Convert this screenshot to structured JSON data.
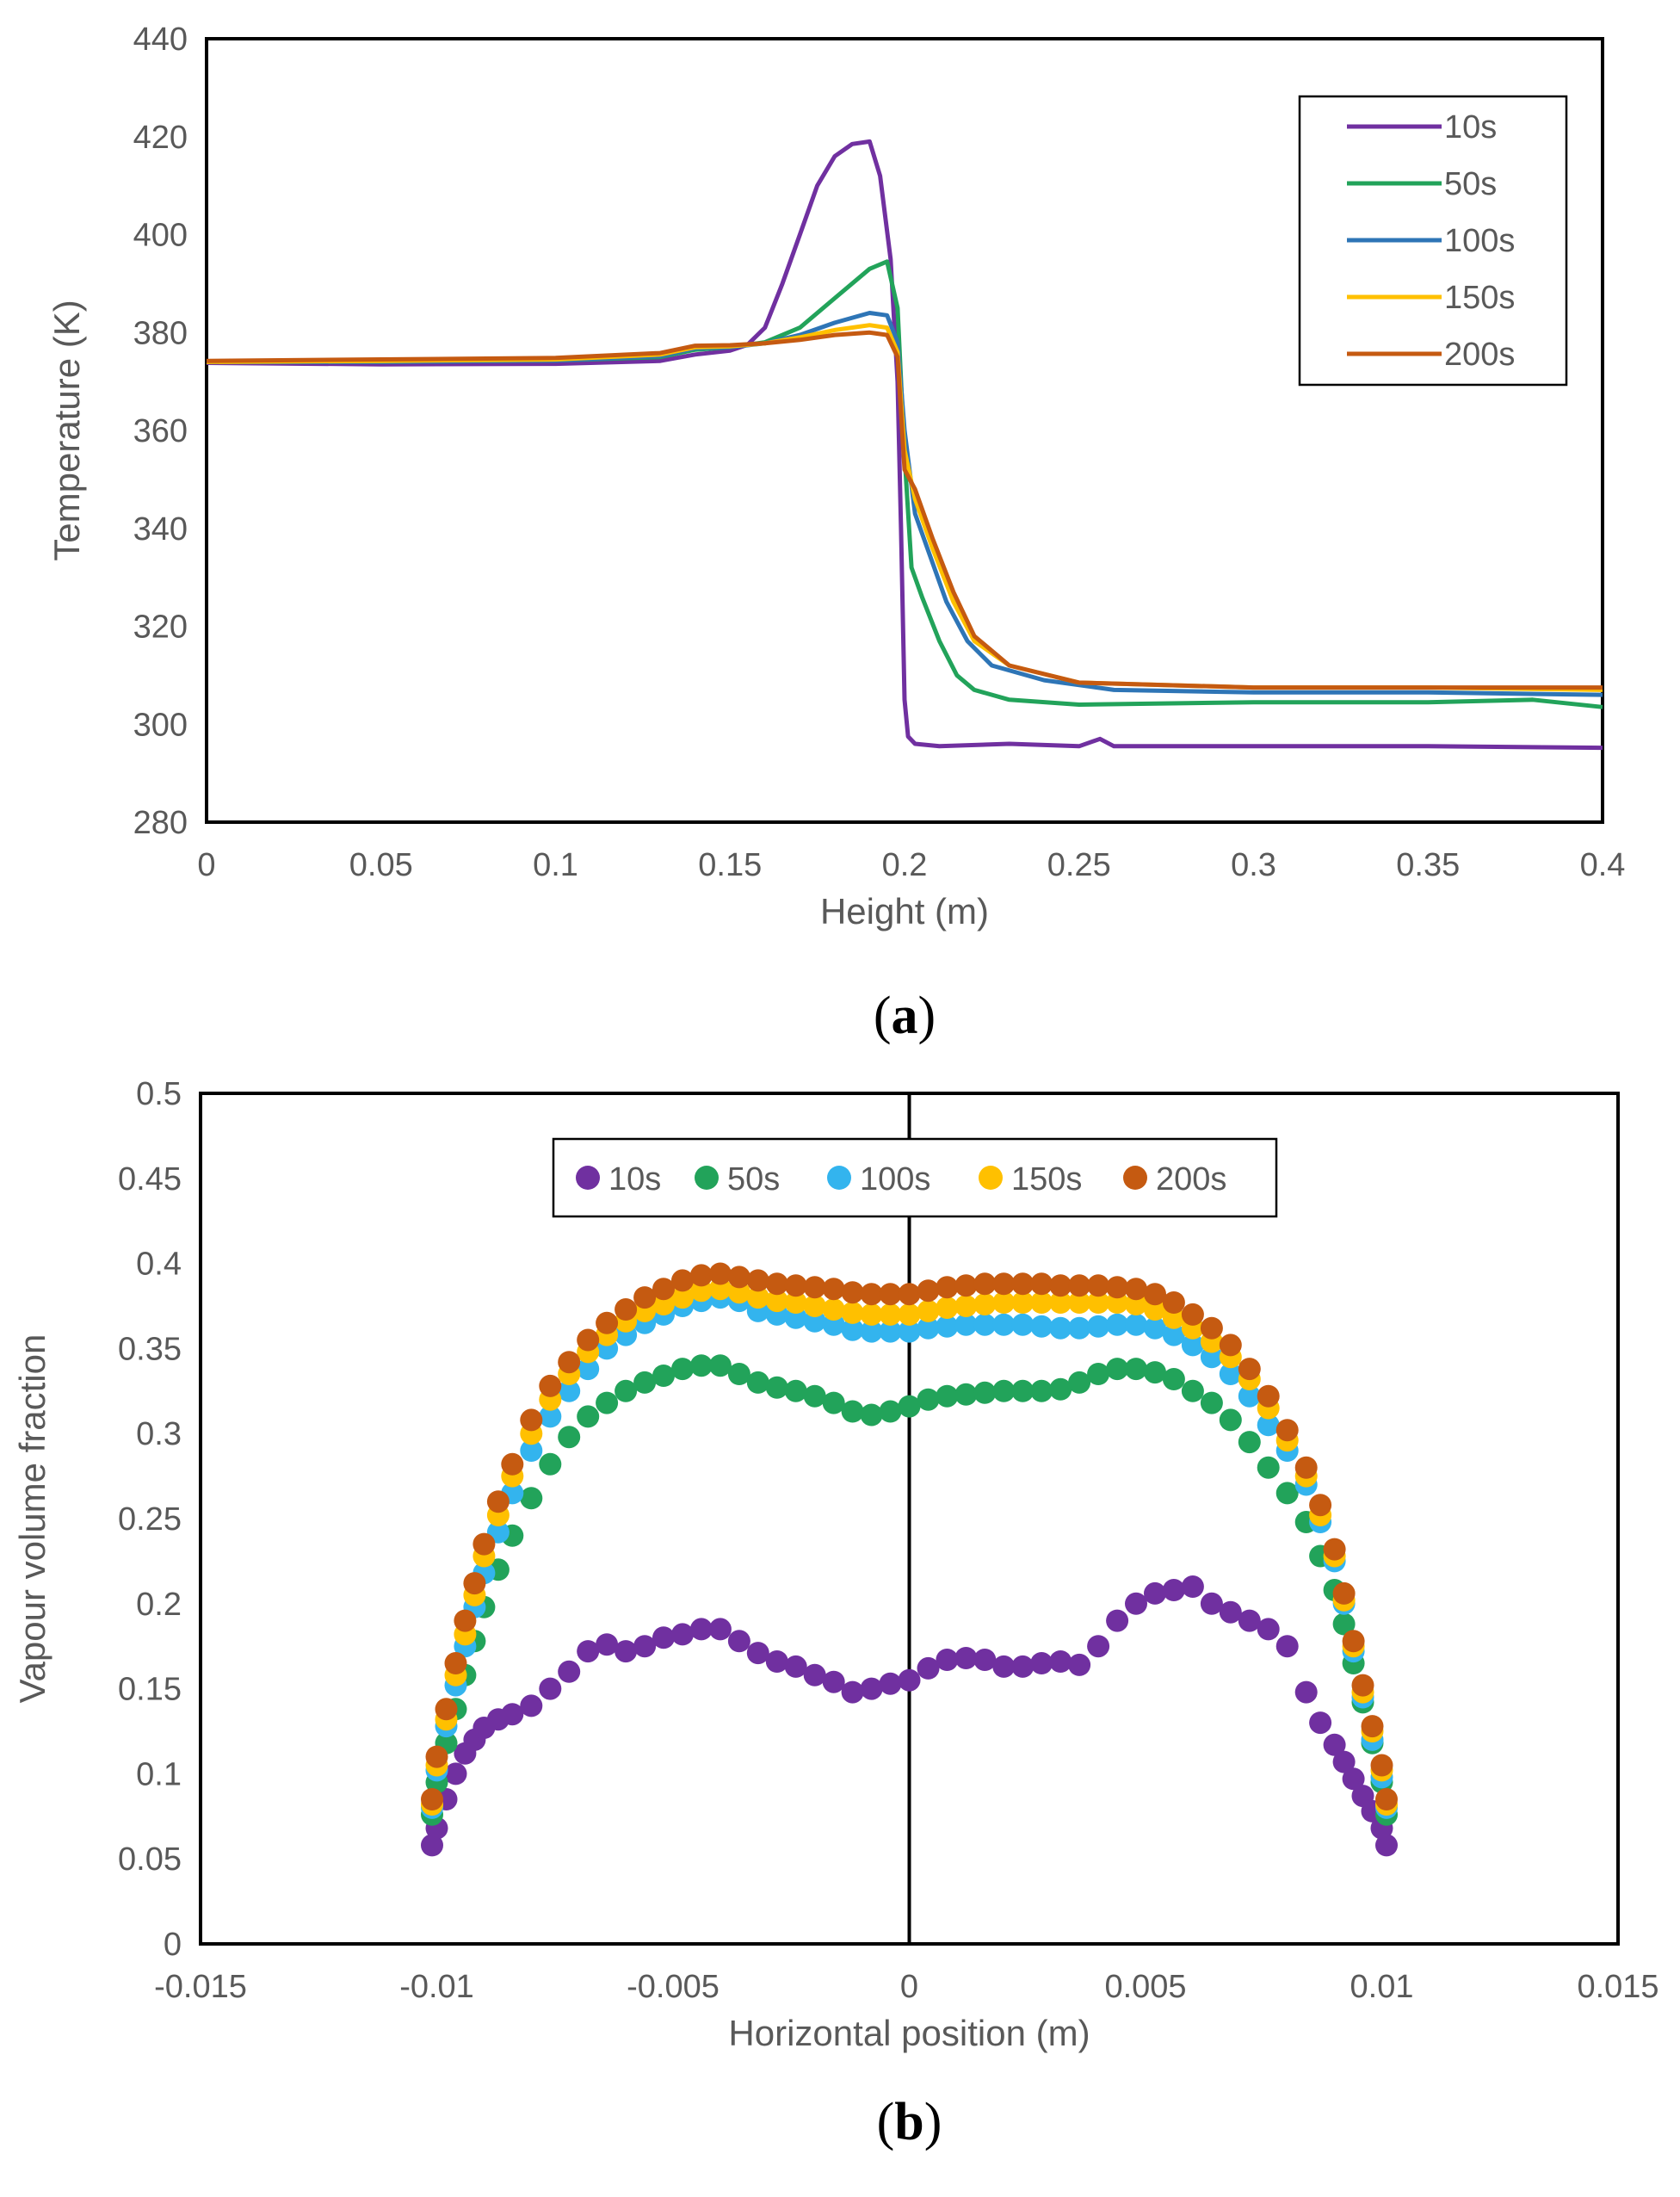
{
  "colors": {
    "10s_a": "#7030a0",
    "50s_a": "#22a35a",
    "100s_a": "#2e75b6",
    "150s": "#ffc000",
    "200s": "#c55a11",
    "10s_b": "#7030a0",
    "50s_b": "#22a35a",
    "100s_b": "#33b4ee"
  },
  "chart_data": [
    {
      "type": "line",
      "panel_label": {
        "open": "(",
        "letter": "a",
        "close": ")"
      },
      "title": "",
      "xlabel": "Height (m)",
      "ylabel": "Temperature (K)",
      "xlim": [
        0,
        0.4
      ],
      "ylim": [
        280,
        440
      ],
      "xticks": [
        "0",
        "0.05",
        "0.1",
        "0.15",
        "0.2",
        "0.25",
        "0.3",
        "0.35",
        "0.4"
      ],
      "yticks": [
        "280",
        "300",
        "320",
        "340",
        "360",
        "380",
        "400",
        "420",
        "440"
      ],
      "grid": false,
      "legend_position": "top-right",
      "series": [
        {
          "name": "10s",
          "color": "#7030a0",
          "x": [
            0,
            0.05,
            0.1,
            0.13,
            0.14,
            0.15,
            0.155,
            0.16,
            0.165,
            0.17,
            0.175,
            0.18,
            0.185,
            0.19,
            0.193,
            0.196,
            0.198,
            0.199,
            0.2,
            0.201,
            0.203,
            0.21,
            0.23,
            0.25,
            0.256,
            0.26,
            0.3,
            0.35,
            0.4
          ],
          "y": [
            373.8,
            373.5,
            373.6,
            374.2,
            375.5,
            376.3,
            377.5,
            381,
            390,
            400,
            410,
            416,
            418.5,
            419,
            412,
            395,
            370,
            340,
            305,
            297.5,
            296,
            295.5,
            296,
            295.5,
            297,
            295.5,
            295.5,
            295.5,
            295.2
          ]
        },
        {
          "name": "50s",
          "color": "#22a35a",
          "x": [
            0,
            0.05,
            0.1,
            0.13,
            0.14,
            0.15,
            0.16,
            0.17,
            0.18,
            0.19,
            0.195,
            0.198,
            0.2,
            0.202,
            0.205,
            0.21,
            0.215,
            0.22,
            0.23,
            0.25,
            0.3,
            0.35,
            0.38,
            0.4
          ],
          "y": [
            374,
            374,
            374.3,
            375,
            376.5,
            377,
            378,
            381,
            387,
            393,
            394.5,
            385,
            355,
            332,
            326,
            317,
            310,
            307,
            305,
            304,
            304.5,
            304.5,
            305,
            303.5
          ]
        },
        {
          "name": "100s",
          "color": "#2e75b6",
          "x": [
            0,
            0.05,
            0.1,
            0.13,
            0.14,
            0.15,
            0.16,
            0.17,
            0.18,
            0.19,
            0.195,
            0.198,
            0.2,
            0.203,
            0.207,
            0.212,
            0.218,
            0.225,
            0.24,
            0.26,
            0.3,
            0.35,
            0.4
          ],
          "y": [
            374,
            374,
            374.3,
            375.2,
            376.8,
            377,
            377.8,
            379.5,
            382,
            384,
            383.5,
            378,
            360,
            343,
            335,
            325,
            317,
            312,
            309,
            307,
            306.5,
            306.5,
            306
          ]
        },
        {
          "name": "150s",
          "color": "#ffc000",
          "x": [
            0,
            0.05,
            0.1,
            0.13,
            0.14,
            0.15,
            0.16,
            0.17,
            0.18,
            0.19,
            0.195,
            0.198,
            0.2,
            0.203,
            0.208,
            0.214,
            0.22,
            0.23,
            0.25,
            0.3,
            0.35,
            0.4
          ],
          "y": [
            374,
            374.2,
            374.5,
            375.5,
            377,
            377.2,
            377.8,
            379,
            380.5,
            381.5,
            381,
            376,
            356,
            346,
            336,
            325,
            317,
            312,
            308.5,
            307.5,
            307.5,
            307
          ]
        },
        {
          "name": "200s",
          "color": "#c55a11",
          "x": [
            0,
            0.05,
            0.1,
            0.13,
            0.14,
            0.15,
            0.16,
            0.17,
            0.18,
            0.19,
            0.195,
            0.198,
            0.2,
            0.203,
            0.208,
            0.214,
            0.22,
            0.23,
            0.25,
            0.3,
            0.35,
            0.4
          ],
          "y": [
            374.2,
            374.5,
            374.8,
            375.8,
            377.3,
            377.4,
            377.8,
            378.5,
            379.5,
            380,
            379.5,
            375,
            352,
            348,
            338,
            327,
            318,
            312,
            308.5,
            307.5,
            307.5,
            307.5
          ]
        }
      ]
    },
    {
      "type": "scatter",
      "panel_label": {
        "open": "(",
        "letter": "b",
        "close": ")"
      },
      "title": "",
      "xlabel": "Horizontal position (m)",
      "ylabel": "Vapour volume fraction",
      "xlim": [
        -0.015,
        0.015
      ],
      "ylim": [
        0,
        0.5
      ],
      "xticks": [
        "-0.015",
        "-0.01",
        "-0.005",
        "0",
        "0.005",
        "0.01",
        "0.015"
      ],
      "yticks": [
        "0",
        "0.05",
        "0.1",
        "0.15",
        "0.2",
        "0.25",
        "0.3",
        "0.35",
        "0.4",
        "0.45",
        "0.5"
      ],
      "grid": false,
      "legend_position": "top-center",
      "x": [
        -0.0101,
        -0.01,
        -0.0098,
        -0.0096,
        -0.0094,
        -0.0092,
        -0.009,
        -0.0087,
        -0.0084,
        -0.008,
        -0.0076,
        -0.0072,
        -0.0068,
        -0.0064,
        -0.006,
        -0.0056,
        -0.0052,
        -0.0048,
        -0.0044,
        -0.004,
        -0.0036,
        -0.0032,
        -0.0028,
        -0.0024,
        -0.002,
        -0.0016,
        -0.0012,
        -0.0008,
        -0.0004,
        0,
        0.0004,
        0.0008,
        0.0012,
        0.0016,
        0.002,
        0.0024,
        0.0028,
        0.0032,
        0.0036,
        0.004,
        0.0044,
        0.0048,
        0.0052,
        0.0056,
        0.006,
        0.0064,
        0.0068,
        0.0072,
        0.0076,
        0.008,
        0.0084,
        0.0087,
        0.009,
        0.0092,
        0.0094,
        0.0096,
        0.0098,
        0.01,
        0.0101
      ],
      "series": [
        {
          "name": "10s",
          "color": "#7030a0",
          "values": [
            0.058,
            0.068,
            0.085,
            0.1,
            0.112,
            0.12,
            0.127,
            0.132,
            0.135,
            0.14,
            0.15,
            0.16,
            0.172,
            0.176,
            0.172,
            0.175,
            0.18,
            0.182,
            0.185,
            0.185,
            0.178,
            0.171,
            0.166,
            0.163,
            0.158,
            0.154,
            0.148,
            0.15,
            0.153,
            0.155,
            0.162,
            0.167,
            0.168,
            0.167,
            0.163,
            0.163,
            0.165,
            0.166,
            0.164,
            0.175,
            0.19,
            0.2,
            0.206,
            0.208,
            0.21,
            0.2,
            0.195,
            0.19,
            0.185,
            0.175,
            0.148,
            0.13,
            0.117,
            0.107,
            0.097,
            0.087,
            0.078,
            0.068,
            0.058
          ]
        },
        {
          "name": "50s",
          "color": "#22a35a",
          "values": [
            0.076,
            0.095,
            0.118,
            0.138,
            0.158,
            0.178,
            0.198,
            0.22,
            0.24,
            0.262,
            0.282,
            0.298,
            0.31,
            0.318,
            0.325,
            0.33,
            0.334,
            0.338,
            0.34,
            0.34,
            0.335,
            0.33,
            0.327,
            0.325,
            0.322,
            0.318,
            0.313,
            0.311,
            0.313,
            0.316,
            0.32,
            0.322,
            0.323,
            0.324,
            0.325,
            0.325,
            0.325,
            0.326,
            0.33,
            0.335,
            0.338,
            0.338,
            0.336,
            0.332,
            0.325,
            0.318,
            0.308,
            0.295,
            0.28,
            0.265,
            0.248,
            0.228,
            0.208,
            0.188,
            0.165,
            0.142,
            0.118,
            0.095,
            0.076
          ]
        },
        {
          "name": "100s",
          "color": "#33b4ee",
          "values": [
            0.08,
            0.102,
            0.128,
            0.152,
            0.175,
            0.198,
            0.218,
            0.242,
            0.265,
            0.29,
            0.31,
            0.325,
            0.338,
            0.35,
            0.358,
            0.365,
            0.37,
            0.375,
            0.378,
            0.38,
            0.378,
            0.372,
            0.37,
            0.368,
            0.366,
            0.364,
            0.361,
            0.36,
            0.36,
            0.36,
            0.362,
            0.363,
            0.364,
            0.364,
            0.364,
            0.364,
            0.363,
            0.362,
            0.362,
            0.363,
            0.364,
            0.364,
            0.362,
            0.358,
            0.352,
            0.345,
            0.335,
            0.322,
            0.305,
            0.29,
            0.27,
            0.248,
            0.225,
            0.2,
            0.172,
            0.145,
            0.12,
            0.098,
            0.08
          ]
        },
        {
          "name": "150s",
          "color": "#ffc000",
          "values": [
            0.082,
            0.105,
            0.132,
            0.158,
            0.182,
            0.205,
            0.228,
            0.252,
            0.275,
            0.3,
            0.32,
            0.335,
            0.348,
            0.358,
            0.366,
            0.372,
            0.376,
            0.38,
            0.384,
            0.385,
            0.383,
            0.38,
            0.378,
            0.377,
            0.375,
            0.373,
            0.371,
            0.37,
            0.37,
            0.37,
            0.372,
            0.374,
            0.375,
            0.376,
            0.377,
            0.377,
            0.377,
            0.377,
            0.377,
            0.377,
            0.377,
            0.376,
            0.373,
            0.368,
            0.362,
            0.354,
            0.345,
            0.332,
            0.315,
            0.296,
            0.275,
            0.252,
            0.228,
            0.202,
            0.175,
            0.148,
            0.125,
            0.102,
            0.082
          ]
        },
        {
          "name": "200s",
          "color": "#c55a11",
          "values": [
            0.085,
            0.11,
            0.138,
            0.165,
            0.19,
            0.212,
            0.235,
            0.26,
            0.282,
            0.308,
            0.328,
            0.342,
            0.355,
            0.365,
            0.373,
            0.38,
            0.385,
            0.39,
            0.393,
            0.394,
            0.392,
            0.39,
            0.388,
            0.387,
            0.386,
            0.385,
            0.383,
            0.382,
            0.382,
            0.382,
            0.384,
            0.386,
            0.387,
            0.388,
            0.388,
            0.388,
            0.388,
            0.387,
            0.387,
            0.387,
            0.386,
            0.385,
            0.382,
            0.377,
            0.37,
            0.362,
            0.352,
            0.338,
            0.322,
            0.302,
            0.28,
            0.258,
            0.232,
            0.206,
            0.178,
            0.152,
            0.128,
            0.105,
            0.085
          ]
        }
      ]
    }
  ]
}
